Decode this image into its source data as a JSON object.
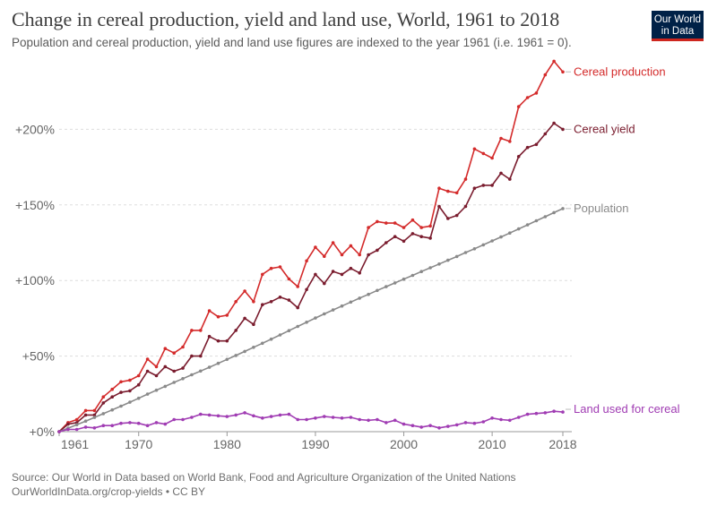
{
  "header": {
    "title": "Change in cereal production, yield and land use, World, 1961 to 2018",
    "subtitle": "Population and cereal production, yield and land use figures are indexed to the year 1961 (i.e. 1961 = 0).",
    "logo_line1": "Our World",
    "logo_line2": "in Data"
  },
  "footer": {
    "source": "Source: Our World in Data based on World Bank, Food and Agriculture Organization of the United Nations",
    "license": "OurWorldInData.org/crop-yields • CC BY"
  },
  "colors": {
    "cereal_production": "#d42b2b",
    "cereal_yield": "#7a1c2e",
    "population": "#8a8a8a",
    "land_used": "#a03cb3",
    "grid": "#dddddd",
    "axis": "#999999"
  },
  "chart_data": {
    "type": "line",
    "title": "Change in cereal production, yield and land use, World, 1961 to 2018",
    "xlabel": "",
    "ylabel": "",
    "xlim": [
      1961,
      2018
    ],
    "ylim": [
      0,
      250
    ],
    "x_tick_labels": [
      "1961",
      "1970",
      "1980",
      "1990",
      "2000",
      "2010",
      "2018"
    ],
    "x_ticks": [
      1961,
      1970,
      1980,
      1990,
      2000,
      2010,
      2018
    ],
    "y_tick_labels": [
      "+0%",
      "+50%",
      "+100%",
      "+150%",
      "+200%"
    ],
    "y_ticks": [
      0,
      50,
      100,
      150,
      200
    ],
    "grid": "horizontal dashed",
    "legend": "line-end labels",
    "x": [
      1961,
      1962,
      1963,
      1964,
      1965,
      1966,
      1967,
      1968,
      1969,
      1970,
      1971,
      1972,
      1973,
      1974,
      1975,
      1976,
      1977,
      1978,
      1979,
      1980,
      1981,
      1982,
      1983,
      1984,
      1985,
      1986,
      1987,
      1988,
      1989,
      1990,
      1991,
      1992,
      1993,
      1994,
      1995,
      1996,
      1997,
      1998,
      1999,
      2000,
      2001,
      2002,
      2003,
      2004,
      2005,
      2006,
      2007,
      2008,
      2009,
      2010,
      2011,
      2012,
      2013,
      2014,
      2015,
      2016,
      2017,
      2018
    ],
    "series": [
      {
        "name": "Cereal production",
        "color_key": "cereal_production",
        "values": [
          0,
          6,
          8,
          14,
          14,
          23,
          28,
          33,
          34,
          37,
          48,
          43,
          55,
          52,
          56,
          67,
          67,
          80,
          76,
          77,
          86,
          93,
          86,
          104,
          108,
          109,
          101,
          96,
          113,
          122,
          116,
          125,
          117,
          123,
          117,
          135,
          139,
          138,
          138,
          135,
          140,
          135,
          136,
          161,
          159,
          158,
          167,
          187,
          184,
          181,
          194,
          192,
          215,
          221,
          224,
          236,
          245,
          238
        ]
      },
      {
        "name": "Cereal yield",
        "color_key": "cereal_yield",
        "values": [
          0,
          5,
          6,
          11,
          11,
          19,
          23,
          26,
          27,
          31,
          40,
          37,
          43,
          40,
          42,
          50,
          50,
          63,
          60,
          60,
          67,
          75,
          71,
          84,
          86,
          89,
          87,
          82,
          94,
          104,
          98,
          106,
          104,
          108,
          105,
          117,
          120,
          125,
          129,
          126,
          131,
          129,
          128,
          149,
          141,
          143,
          149,
          161,
          163,
          163,
          171,
          167,
          182,
          188,
          190,
          197,
          204,
          200
        ]
      },
      {
        "name": "Population",
        "color_key": "population",
        "values": [
          0,
          2.3,
          4.6,
          7.0,
          9.4,
          11.9,
          14.4,
          16.9,
          19.5,
          22.1,
          24.8,
          27.4,
          30.0,
          32.6,
          35.1,
          37.6,
          40.1,
          42.6,
          45.2,
          47.8,
          50.4,
          53.1,
          55.8,
          58.5,
          61.2,
          64.0,
          66.8,
          69.6,
          72.4,
          75.2,
          77.9,
          80.5,
          83.1,
          85.7,
          88.3,
          90.8,
          93.4,
          95.9,
          98.4,
          100.9,
          103.4,
          105.9,
          108.4,
          110.9,
          113.4,
          115.9,
          118.5,
          121.0,
          123.6,
          126.2,
          128.8,
          131.4,
          134.1,
          136.8,
          139.5,
          142.2,
          144.9,
          147.6
        ]
      },
      {
        "name": "Land used for cereal",
        "color_key": "land_used",
        "values": [
          0,
          1.5,
          1.5,
          3,
          2.5,
          4,
          4,
          5.5,
          6,
          5.5,
          4,
          6,
          5,
          8,
          8,
          9.5,
          11.5,
          11,
          10.5,
          10,
          11,
          12.5,
          10.5,
          9,
          10,
          11,
          11.5,
          8,
          8,
          9,
          10,
          9.5,
          9,
          9.5,
          8,
          7.5,
          8,
          6,
          7.5,
          5,
          4,
          3,
          4,
          2.5,
          3.5,
          4.5,
          6,
          5.5,
          6.5,
          9,
          8,
          7.5,
          9.5,
          11.5,
          12,
          12.5,
          13.5,
          13
        ]
      }
    ]
  }
}
